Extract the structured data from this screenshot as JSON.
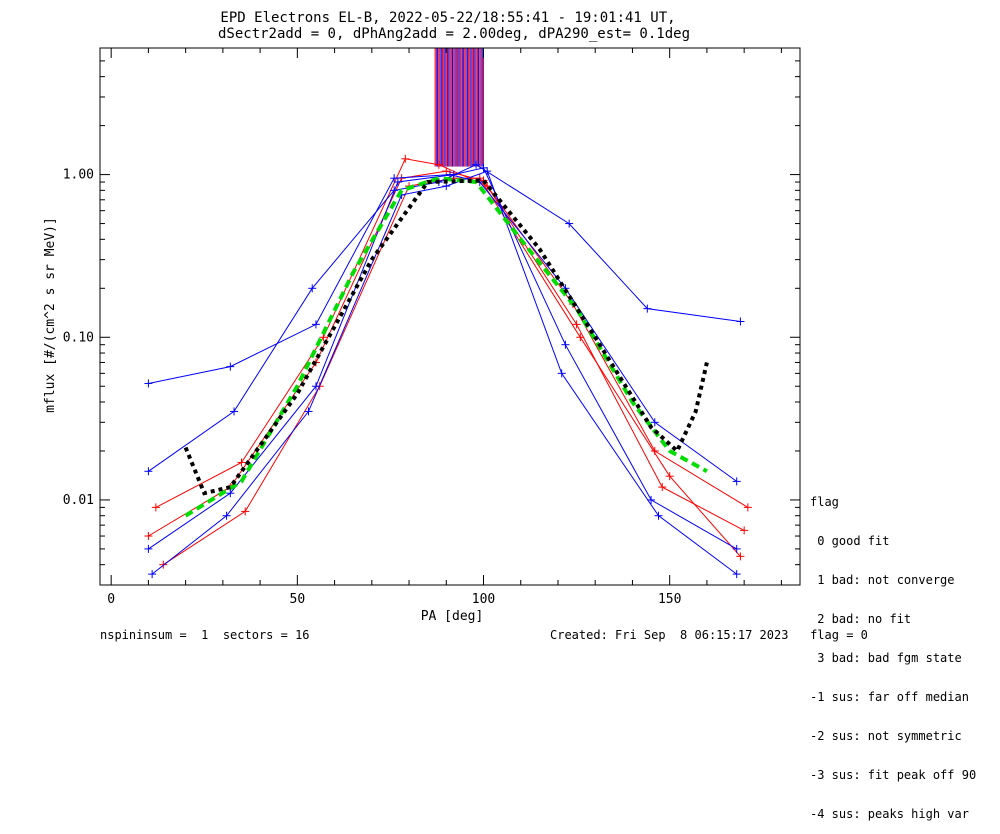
{
  "chart_data": {
    "type": "line",
    "title": "EPD Electrons EL-B, 2022-05-22/18:55:41 - 19:01:41 UT,",
    "subtitle": "dSectr2add = 0, dPhAng2add = 2.00deg, dPA290_est=   0.1deg",
    "xlabel": "PA [deg]",
    "ylabel": "mflux [#/(cm^2 s sr MeV)]",
    "xlim": [
      -3,
      185
    ],
    "ylim": [
      0.003,
      6
    ],
    "yscale": "log",
    "xticks": [
      0,
      50,
      100,
      150
    ],
    "yticks": [
      0.01,
      0.1,
      1.0
    ],
    "ytick_labels": [
      "0.01",
      "0.10",
      "1.00"
    ],
    "grid": false,
    "series": [
      {
        "color": "#ff0000",
        "x": [
          10,
          32,
          55,
          78,
          90,
          100,
          125,
          148,
          170
        ],
        "y": [
          0.006,
          0.012,
          0.07,
          0.95,
          1.05,
          0.92,
          0.12,
          0.012,
          0.0065
        ]
      },
      {
        "color": "#ff0000",
        "x": [
          12,
          35,
          57,
          79,
          88,
          101,
          124,
          146,
          171
        ],
        "y": [
          0.009,
          0.017,
          0.1,
          1.25,
          1.15,
          0.85,
          0.16,
          0.02,
          0.009
        ]
      },
      {
        "color": "#ff0000",
        "x": [
          14,
          36,
          56,
          80,
          92,
          99,
          126,
          150,
          169
        ],
        "y": [
          0.004,
          0.0085,
          0.05,
          0.85,
          0.95,
          0.95,
          0.1,
          0.014,
          0.0045
        ]
      },
      {
        "color": "#0000ff",
        "x": [
          10,
          32,
          55,
          77,
          92,
          100,
          122,
          145,
          168
        ],
        "y": [
          0.005,
          0.011,
          0.05,
          0.9,
          1.0,
          1.1,
          0.09,
          0.01,
          0.005
        ]
      },
      {
        "color": "#0000ff",
        "x": [
          10,
          33,
          54,
          76,
          88,
          98,
          123,
          144,
          169
        ],
        "y": [
          0.015,
          0.035,
          0.2,
          0.8,
          0.9,
          1.15,
          0.5,
          0.15,
          0.125
        ]
      },
      {
        "color": "#0000ff",
        "x": [
          11,
          31,
          53,
          78,
          90,
          101,
          121,
          147,
          168
        ],
        "y": [
          0.0035,
          0.008,
          0.035,
          0.75,
          0.85,
          1.05,
          0.06,
          0.008,
          0.0035
        ]
      },
      {
        "color": "#0000ff",
        "x": [
          10,
          32,
          55,
          76,
          91,
          99,
          122,
          146,
          168
        ],
        "y": [
          0.052,
          0.066,
          0.12,
          0.95,
          1.0,
          0.9,
          0.2,
          0.03,
          0.013
        ]
      },
      {
        "name": "fit",
        "style": "dashed",
        "color": "#00dd00",
        "x": [
          20,
          35,
          50,
          65,
          78,
          88,
          98,
          110,
          125,
          140,
          150,
          160
        ],
        "y": [
          0.008,
          0.013,
          0.05,
          0.25,
          0.8,
          0.95,
          0.9,
          0.4,
          0.15,
          0.04,
          0.02,
          0.015
        ]
      },
      {
        "name": "fit",
        "style": "dotted",
        "color": "#000000",
        "x": [
          20,
          25,
          32,
          50,
          70,
          85,
          100,
          115,
          130,
          145,
          152,
          157,
          160
        ],
        "y": [
          0.021,
          0.011,
          0.012,
          0.045,
          0.3,
          0.9,
          0.92,
          0.35,
          0.1,
          0.028,
          0.02,
          0.035,
          0.07
        ]
      }
    ],
    "spikes": {
      "note_x_range": [
        87,
        100
      ],
      "colors": [
        "#ff0000",
        "#880088",
        "#0000ff"
      ]
    }
  },
  "legend": {
    "title": "flag",
    "items": [
      " 0 good fit",
      " 1 bad: not converge",
      " 2 bad: no fit",
      " 3 bad: bad fgm state",
      "-1 sus: far off median",
      "-2 sus: not symmetric",
      "-3 sus: fit peak off 90",
      "-4 sus: peaks high var"
    ]
  },
  "footer": {
    "left": "nspininsum =  1  sectors = 16",
    "right": "Created: Fri Sep  8 06:15:17 2023   flag = 0"
  }
}
